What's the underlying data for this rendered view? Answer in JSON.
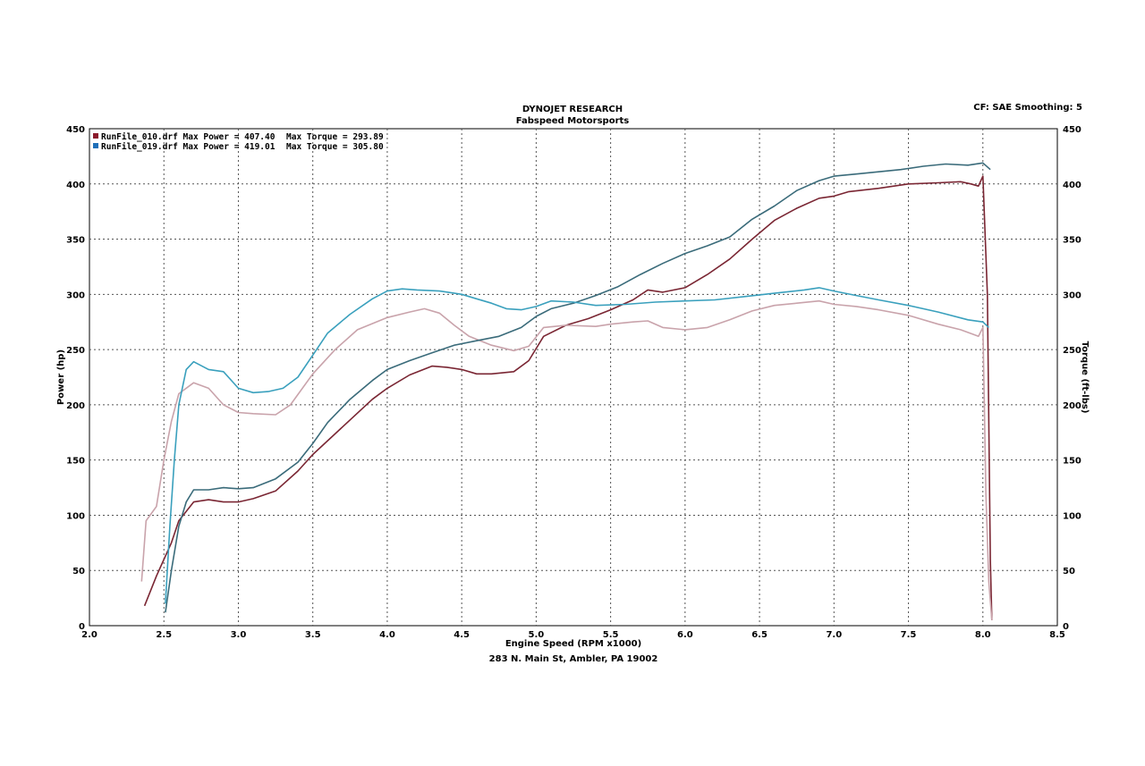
{
  "header": {
    "title": "DYNOJET RESEARCH",
    "subtitle": "Fabspeed Motorsports",
    "settings": "CF: SAE  Smoothing: 5",
    "footer": "283 N. Main St, Ambler, PA 19002"
  },
  "legend": [
    {
      "text": "RunFile_010.drf Max Power = 407.40",
      "torque_text": "Max Torque = 293.89",
      "color": "#8b1a2b"
    },
    {
      "text": "RunFile_019.drf Max Power = 419.01",
      "torque_text": "Max Torque = 305.80",
      "color": "#1f6fb8"
    }
  ],
  "colors": {
    "run010_power": "#7a2633",
    "run010_torque": "#c9a3ab",
    "run019_power": "#3a6b7a",
    "run019_torque": "#3aa0bd",
    "grid": "#555555"
  },
  "chart_data": {
    "type": "line",
    "title": "DYNOJET RESEARCH",
    "subtitle": "Fabspeed Motorsports",
    "xlabel": "Engine Speed (RPM x1000)",
    "ylabel": "Power (hp)",
    "y2label": "Torque (ft-lbs)",
    "xlim": [
      2.0,
      8.5
    ],
    "ylim": [
      0,
      450
    ],
    "y2lim": [
      0,
      450
    ],
    "xticks": [
      "2.0",
      "2.5",
      "3.0",
      "3.5",
      "4.0",
      "4.5",
      "5.0",
      "5.5",
      "6.0",
      "6.5",
      "7.0",
      "7.5",
      "8.0",
      "8.5"
    ],
    "yticks": [
      "0",
      "50",
      "100",
      "150",
      "200",
      "250",
      "300",
      "350",
      "400",
      "450"
    ],
    "grid": true,
    "legend_position": "top-left",
    "series": [
      {
        "name": "RunFile_010.drf Max Power = 407.40",
        "role": "power",
        "points": [
          [
            2.37,
            18
          ],
          [
            2.45,
            45
          ],
          [
            2.55,
            75
          ],
          [
            2.6,
            95
          ],
          [
            2.7,
            112
          ],
          [
            2.8,
            114
          ],
          [
            2.9,
            112
          ],
          [
            3.0,
            112
          ],
          [
            3.1,
            115
          ],
          [
            3.25,
            122
          ],
          [
            3.4,
            140
          ],
          [
            3.5,
            155
          ],
          [
            3.7,
            180
          ],
          [
            3.9,
            205
          ],
          [
            4.0,
            215
          ],
          [
            4.15,
            227
          ],
          [
            4.3,
            235
          ],
          [
            4.4,
            234
          ],
          [
            4.5,
            232
          ],
          [
            4.6,
            228
          ],
          [
            4.7,
            228
          ],
          [
            4.85,
            230
          ],
          [
            4.95,
            240
          ],
          [
            5.05,
            262
          ],
          [
            5.2,
            272
          ],
          [
            5.35,
            278
          ],
          [
            5.5,
            286
          ],
          [
            5.65,
            295
          ],
          [
            5.75,
            304
          ],
          [
            5.85,
            302
          ],
          [
            6.0,
            306
          ],
          [
            6.15,
            318
          ],
          [
            6.3,
            332
          ],
          [
            6.45,
            350
          ],
          [
            6.6,
            367
          ],
          [
            6.75,
            378
          ],
          [
            6.9,
            387
          ],
          [
            7.0,
            389
          ],
          [
            7.1,
            393
          ],
          [
            7.3,
            396
          ],
          [
            7.5,
            400
          ],
          [
            7.7,
            401
          ],
          [
            7.85,
            402
          ],
          [
            7.92,
            400
          ],
          [
            7.97,
            398
          ],
          [
            8.0,
            407
          ],
          [
            8.03,
            300
          ],
          [
            8.05,
            60
          ],
          [
            8.06,
            5
          ]
        ]
      },
      {
        "name": "RunFile_010.drf Max Torque = 293.89",
        "role": "torque",
        "points": [
          [
            2.35,
            40
          ],
          [
            2.38,
            95
          ],
          [
            2.45,
            108
          ],
          [
            2.5,
            150
          ],
          [
            2.55,
            185
          ],
          [
            2.6,
            210
          ],
          [
            2.7,
            220
          ],
          [
            2.8,
            215
          ],
          [
            2.9,
            200
          ],
          [
            3.0,
            193
          ],
          [
            3.1,
            192
          ],
          [
            3.25,
            191
          ],
          [
            3.35,
            200
          ],
          [
            3.5,
            228
          ],
          [
            3.65,
            250
          ],
          [
            3.8,
            268
          ],
          [
            4.0,
            279
          ],
          [
            4.15,
            284
          ],
          [
            4.25,
            287
          ],
          [
            4.35,
            283
          ],
          [
            4.45,
            272
          ],
          [
            4.55,
            262
          ],
          [
            4.7,
            254
          ],
          [
            4.85,
            249
          ],
          [
            4.95,
            253
          ],
          [
            5.05,
            270
          ],
          [
            5.2,
            272
          ],
          [
            5.4,
            271
          ],
          [
            5.5,
            273
          ],
          [
            5.65,
            275
          ],
          [
            5.75,
            276
          ],
          [
            5.85,
            270
          ],
          [
            6.0,
            268
          ],
          [
            6.15,
            270
          ],
          [
            6.3,
            277
          ],
          [
            6.45,
            285
          ],
          [
            6.6,
            290
          ],
          [
            6.75,
            292
          ],
          [
            6.9,
            294
          ],
          [
            7.0,
            291
          ],
          [
            7.15,
            289
          ],
          [
            7.3,
            286
          ],
          [
            7.5,
            281
          ],
          [
            7.7,
            273
          ],
          [
            7.85,
            268
          ],
          [
            7.93,
            264
          ],
          [
            7.97,
            262
          ],
          [
            8.0,
            270
          ],
          [
            8.01,
            200
          ],
          [
            8.02,
            120
          ],
          [
            8.04,
            40
          ],
          [
            8.06,
            5
          ]
        ]
      },
      {
        "name": "RunFile_019.drf Max Power = 419.01",
        "role": "power",
        "points": [
          [
            2.51,
            12
          ],
          [
            2.55,
            50
          ],
          [
            2.6,
            90
          ],
          [
            2.65,
            112
          ],
          [
            2.7,
            123
          ],
          [
            2.8,
            123
          ],
          [
            2.9,
            125
          ],
          [
            3.0,
            124
          ],
          [
            3.1,
            125
          ],
          [
            3.25,
            133
          ],
          [
            3.4,
            148
          ],
          [
            3.5,
            165
          ],
          [
            3.6,
            184
          ],
          [
            3.75,
            205
          ],
          [
            3.9,
            222
          ],
          [
            4.0,
            232
          ],
          [
            4.15,
            240
          ],
          [
            4.3,
            247
          ],
          [
            4.45,
            254
          ],
          [
            4.6,
            258
          ],
          [
            4.75,
            262
          ],
          [
            4.9,
            270
          ],
          [
            5.0,
            280
          ],
          [
            5.1,
            287
          ],
          [
            5.25,
            292
          ],
          [
            5.4,
            299
          ],
          [
            5.55,
            307
          ],
          [
            5.7,
            318
          ],
          [
            5.85,
            328
          ],
          [
            6.0,
            337
          ],
          [
            6.15,
            344
          ],
          [
            6.3,
            352
          ],
          [
            6.45,
            368
          ],
          [
            6.6,
            380
          ],
          [
            6.75,
            394
          ],
          [
            6.9,
            403
          ],
          [
            7.0,
            407
          ],
          [
            7.15,
            409
          ],
          [
            7.3,
            411
          ],
          [
            7.45,
            413
          ],
          [
            7.6,
            416
          ],
          [
            7.75,
            418
          ],
          [
            7.9,
            417
          ],
          [
            8.0,
            419
          ],
          [
            8.05,
            413
          ]
        ]
      },
      {
        "name": "RunFile_019.drf Max Torque = 305.80",
        "role": "torque",
        "points": [
          [
            2.51,
            20
          ],
          [
            2.54,
            90
          ],
          [
            2.57,
            150
          ],
          [
            2.6,
            200
          ],
          [
            2.65,
            232
          ],
          [
            2.7,
            239
          ],
          [
            2.8,
            232
          ],
          [
            2.9,
            230
          ],
          [
            3.0,
            215
          ],
          [
            3.1,
            211
          ],
          [
            3.2,
            212
          ],
          [
            3.3,
            215
          ],
          [
            3.4,
            225
          ],
          [
            3.5,
            245
          ],
          [
            3.6,
            265
          ],
          [
            3.75,
            282
          ],
          [
            3.9,
            296
          ],
          [
            4.0,
            303
          ],
          [
            4.1,
            305
          ],
          [
            4.2,
            304
          ],
          [
            4.35,
            303
          ],
          [
            4.5,
            300
          ],
          [
            4.6,
            296
          ],
          [
            4.7,
            292
          ],
          [
            4.8,
            287
          ],
          [
            4.9,
            286
          ],
          [
            5.0,
            289
          ],
          [
            5.1,
            294
          ],
          [
            5.25,
            293
          ],
          [
            5.4,
            290
          ],
          [
            5.6,
            291
          ],
          [
            5.8,
            293
          ],
          [
            6.0,
            294
          ],
          [
            6.2,
            295
          ],
          [
            6.4,
            298
          ],
          [
            6.6,
            301
          ],
          [
            6.8,
            304
          ],
          [
            6.9,
            306
          ],
          [
            7.0,
            303
          ],
          [
            7.15,
            299
          ],
          [
            7.3,
            295
          ],
          [
            7.5,
            290
          ],
          [
            7.7,
            284
          ],
          [
            7.9,
            277
          ],
          [
            8.0,
            275
          ],
          [
            8.04,
            270
          ]
        ]
      }
    ]
  }
}
